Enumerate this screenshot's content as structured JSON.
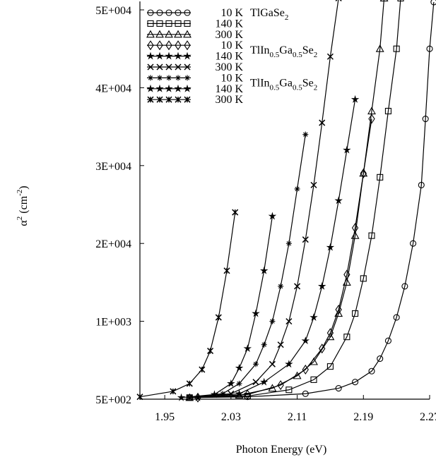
{
  "chart_data": {
    "type": "line",
    "title": "",
    "xlabel": "Photon Energy (eV)",
    "ylabel_parts": {
      "base": "α",
      "sup": "2",
      "unit_open": " (cm",
      "unit_sup": "-2",
      "unit_close": ")"
    },
    "xlim": [
      1.92,
      2.27
    ],
    "ylim": [
      0,
      5
    ],
    "x_ticks": [
      {
        "value": 1.95,
        "label": "1.95"
      },
      {
        "value": 2.03,
        "label": "2.03"
      },
      {
        "value": 2.11,
        "label": "2.11"
      },
      {
        "value": 2.19,
        "label": "2.19"
      },
      {
        "value": 2.27,
        "label": "2.27"
      }
    ],
    "y_ticks": [
      {
        "value": 0,
        "label": "5E+002"
      },
      {
        "value": 1,
        "label": "1E+003"
      },
      {
        "value": 2,
        "label": "2E+004"
      },
      {
        "value": 3,
        "label": "3E+004"
      },
      {
        "value": 4,
        "label": "4E+004"
      },
      {
        "value": 5,
        "label": "5E+004"
      }
    ],
    "grid": false,
    "legend_position": "top-left",
    "legend_groups": [
      {
        "material_parts": [
          {
            "t": "TlGaSe"
          },
          {
            "t": "2",
            "sub": true
          }
        ]
      },
      {
        "material_parts": [
          {
            "t": "TlIn"
          },
          {
            "t": "0.5",
            "sub": true
          },
          {
            "t": "Ga"
          },
          {
            "t": "0.5",
            "sub": true
          },
          {
            "t": "Se"
          },
          {
            "t": "2",
            "sub": true
          }
        ]
      },
      {
        "material_parts": [
          {
            "t": "TlIn"
          },
          {
            "t": "0.5",
            "sub": true
          },
          {
            "t": "Ga"
          },
          {
            "t": "0.5",
            "sub": true
          },
          {
            "t": "Se"
          },
          {
            "t": "2",
            "sub": true
          }
        ]
      }
    ],
    "series": [
      {
        "name": "10 K",
        "group": 0,
        "marker": "circle",
        "points": [
          [
            1.98,
            0.02
          ],
          [
            2.05,
            0.03
          ],
          [
            2.12,
            0.07
          ],
          [
            2.16,
            0.14
          ],
          [
            2.18,
            0.22
          ],
          [
            2.2,
            0.36
          ],
          [
            2.21,
            0.52
          ],
          [
            2.22,
            0.75
          ],
          [
            2.23,
            1.05
          ],
          [
            2.24,
            1.45
          ],
          [
            2.25,
            2.0
          ],
          [
            2.26,
            2.75
          ],
          [
            2.265,
            3.6
          ],
          [
            2.27,
            4.5
          ],
          [
            2.275,
            5.1
          ]
        ]
      },
      {
        "name": "140 K",
        "group": 0,
        "marker": "square",
        "points": [
          [
            1.98,
            0.02
          ],
          [
            2.05,
            0.04
          ],
          [
            2.1,
            0.12
          ],
          [
            2.13,
            0.25
          ],
          [
            2.15,
            0.42
          ],
          [
            2.17,
            0.8
          ],
          [
            2.18,
            1.1
          ],
          [
            2.19,
            1.55
          ],
          [
            2.2,
            2.1
          ],
          [
            2.21,
            2.85
          ],
          [
            2.22,
            3.7
          ],
          [
            2.23,
            4.5
          ],
          [
            2.235,
            5.15
          ]
        ]
      },
      {
        "name": "300 K",
        "group": 0,
        "marker": "triangle",
        "points": [
          [
            1.98,
            0.02
          ],
          [
            2.04,
            0.05
          ],
          [
            2.08,
            0.14
          ],
          [
            2.11,
            0.3
          ],
          [
            2.13,
            0.48
          ],
          [
            2.15,
            0.8
          ],
          [
            2.16,
            1.1
          ],
          [
            2.17,
            1.5
          ],
          [
            2.18,
            2.1
          ],
          [
            2.19,
            2.9
          ],
          [
            2.2,
            3.7
          ],
          [
            2.21,
            4.5
          ],
          [
            2.215,
            5.15
          ]
        ]
      },
      {
        "name": "10 K",
        "group": 1,
        "marker": "diamond",
        "points": [
          [
            1.99,
            0.02
          ],
          [
            2.05,
            0.06
          ],
          [
            2.09,
            0.18
          ],
          [
            2.12,
            0.38
          ],
          [
            2.14,
            0.65
          ],
          [
            2.15,
            0.85
          ],
          [
            2.16,
            1.15
          ],
          [
            2.17,
            1.6
          ],
          [
            2.18,
            2.2
          ],
          [
            2.19,
            2.9
          ],
          [
            2.2,
            3.6
          ]
        ]
      },
      {
        "name": "140 K",
        "group": 1,
        "marker": "star",
        "points": [
          [
            1.99,
            0.02
          ],
          [
            2.04,
            0.07
          ],
          [
            2.07,
            0.22
          ],
          [
            2.1,
            0.45
          ],
          [
            2.12,
            0.75
          ],
          [
            2.13,
            1.05
          ],
          [
            2.14,
            1.45
          ],
          [
            2.15,
            1.95
          ],
          [
            2.16,
            2.55
          ],
          [
            2.17,
            3.2
          ],
          [
            2.18,
            3.85
          ]
        ]
      },
      {
        "name": "300 K",
        "group": 1,
        "marker": "x",
        "points": [
          [
            1.98,
            0.02
          ],
          [
            2.03,
            0.07
          ],
          [
            2.06,
            0.22
          ],
          [
            2.08,
            0.45
          ],
          [
            2.09,
            0.7
          ],
          [
            2.1,
            1.0
          ],
          [
            2.11,
            1.45
          ],
          [
            2.12,
            2.05
          ],
          [
            2.13,
            2.75
          ],
          [
            2.14,
            3.55
          ],
          [
            2.15,
            4.4
          ],
          [
            2.16,
            5.15
          ]
        ]
      },
      {
        "name": "10 K",
        "group": 2,
        "marker": "asterisk",
        "points": [
          [
            1.98,
            0.02
          ],
          [
            2.02,
            0.07
          ],
          [
            2.04,
            0.2
          ],
          [
            2.06,
            0.45
          ],
          [
            2.07,
            0.7
          ],
          [
            2.08,
            1.0
          ],
          [
            2.09,
            1.45
          ],
          [
            2.1,
            2.0
          ],
          [
            2.11,
            2.7
          ],
          [
            2.12,
            3.4
          ]
        ]
      },
      {
        "name": "140 K",
        "group": 2,
        "marker": "star",
        "points": [
          [
            1.97,
            0.02
          ],
          [
            2.01,
            0.06
          ],
          [
            2.03,
            0.2
          ],
          [
            2.04,
            0.4
          ],
          [
            2.05,
            0.65
          ],
          [
            2.06,
            1.1
          ],
          [
            2.07,
            1.65
          ],
          [
            2.08,
            2.35
          ]
        ]
      },
      {
        "name": "300 K",
        "group": 2,
        "marker": "xstar",
        "points": [
          [
            1.92,
            0.03
          ],
          [
            1.96,
            0.1
          ],
          [
            1.98,
            0.2
          ],
          [
            1.995,
            0.38
          ],
          [
            2.005,
            0.62
          ],
          [
            2.015,
            1.05
          ],
          [
            2.025,
            1.65
          ],
          [
            2.035,
            2.4
          ]
        ]
      }
    ]
  }
}
